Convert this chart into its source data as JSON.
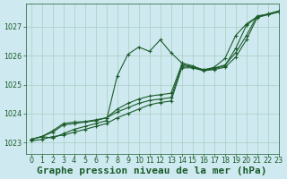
{
  "background_color": "#cfe9f0",
  "plot_bg_color": "#cfe9f0",
  "grid_color": "#a8cfc0",
  "line_color": "#1a5c2a",
  "marker_color": "#1a5c2a",
  "xlabel": "Graphe pression niveau de la mer (hPa)",
  "ylim": [
    1022.6,
    1027.8
  ],
  "xlim": [
    -0.5,
    23
  ],
  "yticks": [
    1023,
    1024,
    1025,
    1026,
    1027
  ],
  "xticks": [
    0,
    1,
    2,
    3,
    4,
    5,
    6,
    7,
    8,
    9,
    10,
    11,
    12,
    13,
    14,
    15,
    16,
    17,
    18,
    19,
    20,
    21,
    22,
    23
  ],
  "series": [
    [
      1023.1,
      1023.2,
      1023.15,
      1023.3,
      1023.45,
      1023.55,
      1023.65,
      1023.75,
      1025.3,
      1026.05,
      1026.3,
      1026.15,
      1026.55,
      1026.1,
      1025.75,
      1025.65,
      1025.5,
      1025.6,
      1025.9,
      1026.7,
      1027.1,
      1027.35,
      1027.45,
      1027.55
    ],
    [
      1023.1,
      1023.2,
      1023.35,
      1023.6,
      1023.65,
      1023.7,
      1023.75,
      1023.85,
      1024.05,
      1024.2,
      1024.35,
      1024.45,
      1024.5,
      1024.55,
      1025.65,
      1025.6,
      1025.5,
      1025.55,
      1025.65,
      1026.25,
      1027.05,
      1027.35,
      1027.43,
      1027.52
    ],
    [
      1023.1,
      1023.2,
      1023.4,
      1023.65,
      1023.7,
      1023.72,
      1023.78,
      1023.85,
      1024.15,
      1024.35,
      1024.5,
      1024.6,
      1024.65,
      1024.7,
      1025.7,
      1025.62,
      1025.52,
      1025.57,
      1025.68,
      1026.1,
      1026.7,
      1027.38,
      1027.43,
      1027.52
    ],
    [
      1023.05,
      1023.1,
      1023.2,
      1023.25,
      1023.35,
      1023.45,
      1023.55,
      1023.65,
      1023.85,
      1024.0,
      1024.15,
      1024.3,
      1024.38,
      1024.43,
      1025.58,
      1025.58,
      1025.48,
      1025.52,
      1025.6,
      1025.95,
      1026.55,
      1027.32,
      1027.42,
      1027.52
    ]
  ],
  "marker_size": 2.5,
  "linewidth": 0.8,
  "tick_fontsize": 5.8,
  "xlabel_fontsize": 8,
  "tick_color": "#1a5c2a",
  "xlabel_color": "#1a5c2a",
  "xlabel_fontweight": "bold"
}
